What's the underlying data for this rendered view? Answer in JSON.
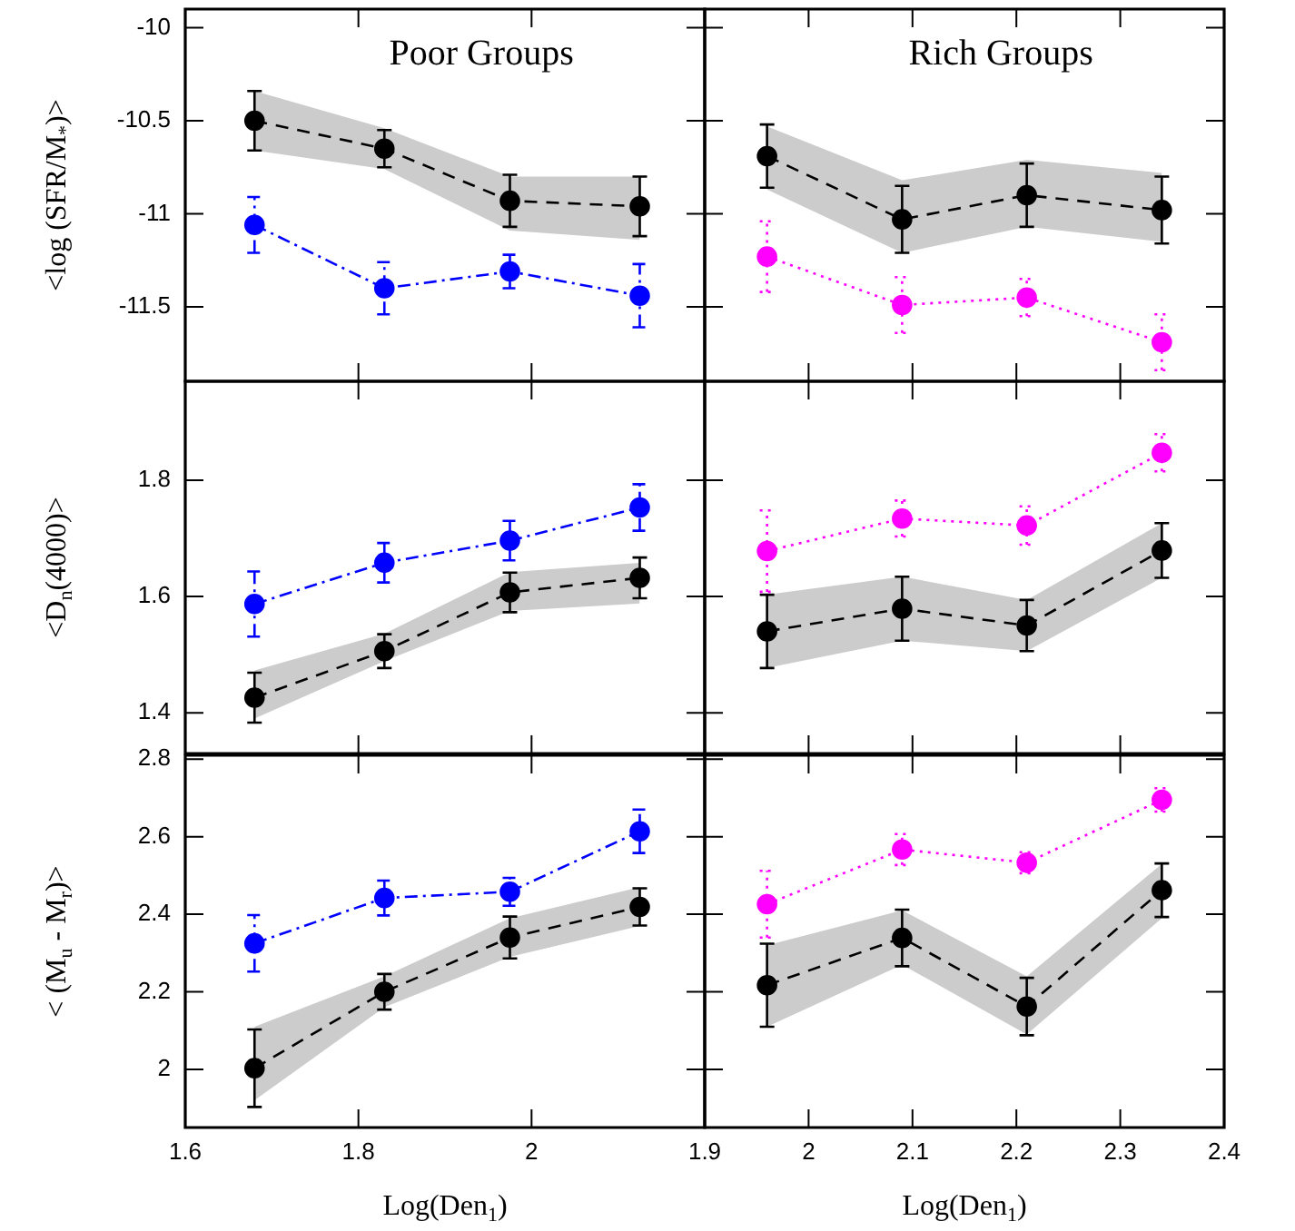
{
  "chart_data": [
    {
      "type": "line",
      "title": "Poor Groups",
      "ylabel": "<log (SFR/M$_{*}$)>",
      "x": [
        1.68,
        1.83,
        1.975,
        2.125
      ],
      "xlim": [
        1.6,
        2.2
      ],
      "xticks": [
        1.6,
        1.8,
        2
      ],
      "ylim": [
        -11.9,
        -9.9
      ],
      "yticks": [
        -10,
        -10.5,
        -11,
        -11.5
      ],
      "tick_labels": "y",
      "marker": "circle",
      "series": [
        {
          "color": "#000000",
          "line_style": "dashed",
          "values": [
            -10.5,
            -10.65,
            -10.93,
            -10.96
          ],
          "errors": [
            0.16,
            0.1,
            0.14,
            0.16
          ],
          "lower": [
            -10.66,
            -10.76,
            -11.09,
            -11.14
          ],
          "upper": [
            -10.34,
            -10.54,
            -10.8,
            -10.8
          ]
        },
        {
          "color": "#0000ff",
          "line_style": "dashdot",
          "values": [
            -11.06,
            -11.4,
            -11.31,
            -11.44
          ],
          "errors": [
            0.15,
            0.14,
            0.09,
            0.17
          ]
        }
      ]
    },
    {
      "type": "line",
      "title": "Rich Groups",
      "x": [
        1.96,
        2.09,
        2.21,
        2.34
      ],
      "xlim": [
        1.9,
        2.4
      ],
      "xticks": [
        1.9,
        2,
        2.1,
        2.2,
        2.3,
        2.4
      ],
      "ylim": [
        -11.9,
        -9.9
      ],
      "yticks": [
        -10,
        -10.5,
        -11,
        -11.5
      ],
      "tick_labels": false,
      "marker": "circle",
      "series": [
        {
          "color": "#000000",
          "line_style": "dashed",
          "values": [
            -10.69,
            -11.03,
            -10.9,
            -10.98
          ],
          "errors": [
            0.17,
            0.18,
            0.17,
            0.18
          ],
          "lower": [
            -10.87,
            -11.21,
            -11.07,
            -11.15
          ],
          "upper": [
            -10.53,
            -10.82,
            -10.71,
            -10.78
          ]
        },
        {
          "color": "#ff00ff",
          "line_style": "dotted",
          "values": [
            -11.23,
            -11.49,
            -11.45,
            -11.69
          ],
          "errors": [
            0.19,
            0.15,
            0.1,
            0.15
          ]
        }
      ]
    },
    {
      "type": "line",
      "ylabel": "<D$_{n}$(4000)>",
      "x": [
        1.68,
        1.83,
        1.975,
        2.125
      ],
      "xlim": [
        1.6,
        2.2
      ],
      "xticks": [
        1.6,
        1.8,
        2
      ],
      "ylim": [
        1.33,
        1.97
      ],
      "yticks": [
        1.4,
        1.6,
        1.8
      ],
      "tick_labels": "y",
      "marker": "circle",
      "series": [
        {
          "color": "#000000",
          "line_style": "dashed",
          "values": [
            1.426,
            1.506,
            1.607,
            1.632
          ],
          "errors": [
            0.043,
            0.029,
            0.034,
            0.035
          ],
          "lower": [
            1.39,
            1.489,
            1.575,
            1.588
          ],
          "upper": [
            1.473,
            1.536,
            1.642,
            1.658
          ]
        },
        {
          "color": "#0000ff",
          "line_style": "dashdot",
          "values": [
            1.587,
            1.658,
            1.696,
            1.753
          ],
          "errors": [
            0.056,
            0.034,
            0.034,
            0.04
          ]
        }
      ]
    },
    {
      "type": "line",
      "x": [
        1.96,
        2.09,
        2.21,
        2.34
      ],
      "xlim": [
        1.9,
        2.4
      ],
      "xticks": [
        1.9,
        2,
        2.1,
        2.2,
        2.3,
        2.4
      ],
      "ylim": [
        1.33,
        1.97
      ],
      "yticks": [
        1.4,
        1.6,
        1.8
      ],
      "tick_labels": false,
      "marker": "circle",
      "series": [
        {
          "color": "#000000",
          "line_style": "dashed",
          "values": [
            1.54,
            1.579,
            1.55,
            1.679
          ],
          "errors": [
            0.063,
            0.055,
            0.044,
            0.047
          ],
          "lower": [
            1.477,
            1.524,
            1.506,
            1.632
          ],
          "upper": [
            1.603,
            1.634,
            1.594,
            1.726
          ]
        },
        {
          "color": "#ff00ff",
          "line_style": "dotted",
          "values": [
            1.678,
            1.734,
            1.722,
            1.847
          ],
          "errors": [
            0.07,
            0.031,
            0.033,
            0.032
          ]
        }
      ]
    },
    {
      "type": "line",
      "xlabel": "Log(Den$_{1}$)",
      "ylabel": "< (M$_{u}$ - M$_{r}$)>",
      "x": [
        1.68,
        1.83,
        1.975,
        2.125
      ],
      "xlim": [
        1.6,
        2.2
      ],
      "xticks": [
        1.6,
        1.8,
        2
      ],
      "ylim": [
        1.85,
        2.81
      ],
      "yticks": [
        2,
        2.2,
        2.4,
        2.6,
        2.8
      ],
      "marker": "circle",
      "series": [
        {
          "color": "#000000",
          "line_style": "dashed",
          "values": [
            2.003,
            2.2,
            2.34,
            2.419
          ],
          "errors": [
            0.1,
            0.046,
            0.054,
            0.048
          ],
          "lower": [
            1.92,
            2.16,
            2.29,
            2.37
          ],
          "upper": [
            2.11,
            2.24,
            2.39,
            2.47
          ]
        },
        {
          "color": "#0000ff",
          "line_style": "dashdot",
          "values": [
            2.325,
            2.442,
            2.458,
            2.614
          ],
          "errors": [
            0.073,
            0.045,
            0.036,
            0.056
          ]
        }
      ]
    },
    {
      "type": "line",
      "xlabel": "Log(Den$_{1}$)",
      "x": [
        1.96,
        2.09,
        2.21,
        2.34
      ],
      "xlim": [
        1.9,
        2.4
      ],
      "xticks": [
        1.9,
        2,
        2.1,
        2.2,
        2.3,
        2.4
      ],
      "ylim": [
        1.85,
        2.81
      ],
      "yticks": [
        2,
        2.2,
        2.4,
        2.6,
        2.8
      ],
      "tick_labels": "x",
      "marker": "circle",
      "series": [
        {
          "color": "#000000",
          "line_style": "dashed",
          "values": [
            2.217,
            2.339,
            2.162,
            2.462
          ],
          "errors": [
            0.107,
            0.073,
            0.074,
            0.069
          ],
          "lower": [
            2.11,
            2.27,
            2.09,
            2.39
          ],
          "upper": [
            2.32,
            2.41,
            2.24,
            2.53
          ]
        },
        {
          "color": "#ff00ff",
          "line_style": "dotted",
          "values": [
            2.426,
            2.567,
            2.533,
            2.695
          ],
          "errors": [
            0.086,
            0.04,
            0.027,
            0.03
          ]
        }
      ]
    }
  ]
}
